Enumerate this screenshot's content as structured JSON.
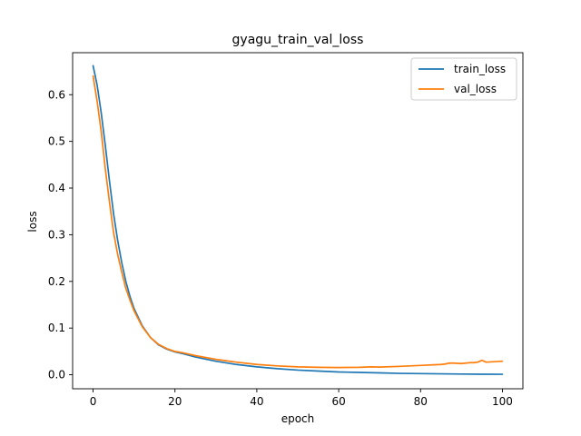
{
  "chart_data": {
    "type": "line",
    "title": "gyagu_train_val_loss",
    "xlabel": "epoch",
    "ylabel": "loss",
    "xlim": [
      -5,
      105
    ],
    "ylim": [
      -0.03,
      0.69
    ],
    "xticks": [
      0,
      20,
      40,
      60,
      80,
      100
    ],
    "yticks": [
      0.0,
      0.1,
      0.2,
      0.3,
      0.4,
      0.5,
      0.6
    ],
    "xtick_labels": [
      "0",
      "20",
      "40",
      "60",
      "80",
      "100"
    ],
    "ytick_labels": [
      "0.0",
      "0.1",
      "0.2",
      "0.3",
      "0.4",
      "0.5",
      "0.6"
    ],
    "grid": false,
    "legend_position": "top-right",
    "series": [
      {
        "name": "train_loss",
        "color": "#1f77b4",
        "x": [
          0,
          1,
          2,
          3,
          4,
          5,
          6,
          7,
          8,
          9,
          10,
          12,
          14,
          16,
          18,
          20,
          22,
          25,
          30,
          35,
          40,
          45,
          50,
          55,
          60,
          65,
          70,
          75,
          80,
          85,
          90,
          95,
          100
        ],
        "y": [
          0.662,
          0.62,
          0.56,
          0.49,
          0.415,
          0.345,
          0.288,
          0.24,
          0.2,
          0.168,
          0.142,
          0.105,
          0.08,
          0.064,
          0.055,
          0.049,
          0.045,
          0.038,
          0.029,
          0.022,
          0.017,
          0.013,
          0.01,
          0.008,
          0.006,
          0.005,
          0.004,
          0.003,
          0.0025,
          0.002,
          0.0015,
          0.0012,
          0.001
        ]
      },
      {
        "name": "val_loss",
        "color": "#ff7f0e",
        "x": [
          0,
          1,
          2,
          3,
          4,
          5,
          6,
          7,
          8,
          9,
          10,
          12,
          14,
          16,
          18,
          20,
          22,
          25,
          30,
          35,
          40,
          45,
          50,
          55,
          60,
          65,
          68,
          70,
          75,
          80,
          85,
          86,
          87,
          88,
          90,
          92,
          93,
          94,
          95,
          96,
          100
        ],
        "y": [
          0.64,
          0.585,
          0.52,
          0.44,
          0.37,
          0.305,
          0.258,
          0.22,
          0.185,
          0.16,
          0.137,
          0.103,
          0.08,
          0.065,
          0.056,
          0.05,
          0.047,
          0.041,
          0.033,
          0.027,
          0.022,
          0.019,
          0.017,
          0.016,
          0.0155,
          0.016,
          0.017,
          0.0165,
          0.018,
          0.02,
          0.022,
          0.023,
          0.025,
          0.025,
          0.024,
          0.026,
          0.026,
          0.027,
          0.031,
          0.027,
          0.029
        ]
      }
    ]
  }
}
